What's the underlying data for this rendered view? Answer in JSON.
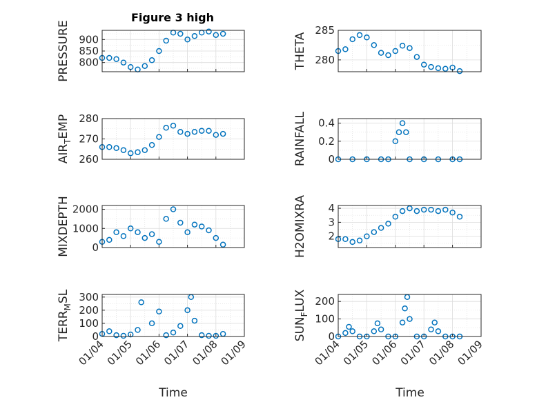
{
  "figure": {
    "title": "Figure 3 high",
    "xlabel": "Time"
  },
  "chart_data": [
    {
      "type": "scatter",
      "ylabel": "PRESSURE",
      "ylim": [
        760,
        940
      ],
      "yticks": [
        800,
        850,
        900
      ],
      "x": [
        "01/04 00:00",
        "01/04 06:00",
        "01/04 12:00",
        "01/04 18:00",
        "01/05 00:00",
        "01/05 06:00",
        "01/05 12:00",
        "01/05 18:00",
        "01/06 00:00",
        "01/06 06:00",
        "01/06 12:00",
        "01/06 18:00",
        "01/07 00:00",
        "01/07 06:00",
        "01/07 12:00",
        "01/07 18:00",
        "01/08 00:00",
        "01/08 06:00"
      ],
      "y": [
        820,
        820,
        815,
        800,
        780,
        770,
        785,
        810,
        850,
        895,
        930,
        925,
        900,
        915,
        930,
        935,
        920,
        925
      ],
      "color": "#0072bd",
      "marker": "o"
    },
    {
      "type": "scatter",
      "ylabel": "THETA",
      "ylim": [
        278,
        285
      ],
      "yticks": [
        280,
        285
      ],
      "x": [
        "01/04 00:00",
        "01/04 06:00",
        "01/04 12:00",
        "01/04 18:00",
        "01/05 00:00",
        "01/05 06:00",
        "01/05 12:00",
        "01/05 18:00",
        "01/06 00:00",
        "01/06 06:00",
        "01/06 12:00",
        "01/06 18:00",
        "01/07 00:00",
        "01/07 06:00",
        "01/07 12:00",
        "01/07 18:00",
        "01/08 00:00",
        "01/08 06:00"
      ],
      "y": [
        281.5,
        281.8,
        283.5,
        284.2,
        283.8,
        282.5,
        281.2,
        280.8,
        281.5,
        282.4,
        282.0,
        280.5,
        279.2,
        278.8,
        278.6,
        278.5,
        278.7,
        278.1
      ],
      "color": "#0072bd",
      "marker": "o"
    },
    {
      "type": "scatter",
      "ylabel": "AIR_TEMP",
      "ylim": [
        260,
        280
      ],
      "yticks": [
        260,
        270,
        280
      ],
      "x": [
        "01/04 00:00",
        "01/04 06:00",
        "01/04 12:00",
        "01/04 18:00",
        "01/05 00:00",
        "01/05 06:00",
        "01/05 12:00",
        "01/05 18:00",
        "01/06 00:00",
        "01/06 06:00",
        "01/06 12:00",
        "01/06 18:00",
        "01/07 00:00",
        "01/07 06:00",
        "01/07 12:00",
        "01/07 18:00",
        "01/08 00:00",
        "01/08 06:00"
      ],
      "y": [
        266,
        266,
        265.5,
        264.5,
        263,
        263.5,
        264.5,
        267,
        271,
        275.5,
        276.5,
        273.5,
        272.5,
        273.5,
        274,
        274,
        272,
        272.5
      ],
      "color": "#0072bd",
      "marker": "o"
    },
    {
      "type": "scatter",
      "ylabel": "RAINFALL",
      "ylim": [
        0,
        0.45
      ],
      "yticks": [
        0,
        0.2,
        0.4
      ],
      "x": [
        "01/04 00:00",
        "01/04 12:00",
        "01/05 00:00",
        "01/05 12:00",
        "01/05 18:00",
        "01/06 00:00",
        "01/06 03:00",
        "01/06 06:00",
        "01/06 09:00",
        "01/06 12:00",
        "01/07 00:00",
        "01/07 12:00",
        "01/08 00:00",
        "01/08 06:00"
      ],
      "y": [
        0,
        0,
        0,
        0,
        0,
        0.2,
        0.3,
        0.4,
        0.3,
        0,
        0,
        0,
        0,
        0
      ],
      "color": "#0072bd",
      "marker": "o"
    },
    {
      "type": "scatter",
      "ylabel": "MIXDEPTH",
      "ylim": [
        0,
        2200
      ],
      "yticks": [
        0,
        1000,
        2000
      ],
      "x": [
        "01/04 00:00",
        "01/04 06:00",
        "01/04 12:00",
        "01/04 18:00",
        "01/05 00:00",
        "01/05 06:00",
        "01/05 12:00",
        "01/05 18:00",
        "01/06 00:00",
        "01/06 06:00",
        "01/06 12:00",
        "01/06 18:00",
        "01/07 00:00",
        "01/07 06:00",
        "01/07 12:00",
        "01/07 18:00",
        "01/08 00:00",
        "01/08 06:00"
      ],
      "y": [
        300,
        400,
        800,
        600,
        1000,
        800,
        500,
        700,
        300,
        1500,
        2000,
        1300,
        800,
        1200,
        1100,
        900,
        500,
        150
      ],
      "color": "#0072bd",
      "marker": "o"
    },
    {
      "type": "scatter",
      "ylabel": "H2OMIXRA",
      "ylim": [
        1.2,
        4.2
      ],
      "yticks": [
        2,
        3,
        4
      ],
      "x": [
        "01/04 00:00",
        "01/04 06:00",
        "01/04 12:00",
        "01/04 18:00",
        "01/05 00:00",
        "01/05 06:00",
        "01/05 12:00",
        "01/05 18:00",
        "01/06 00:00",
        "01/06 06:00",
        "01/06 12:00",
        "01/06 18:00",
        "01/07 00:00",
        "01/07 06:00",
        "01/07 12:00",
        "01/07 18:00",
        "01/08 00:00",
        "01/08 06:00"
      ],
      "y": [
        1.8,
        1.8,
        1.6,
        1.7,
        2.0,
        2.3,
        2.6,
        2.9,
        3.4,
        3.8,
        4.0,
        3.8,
        3.9,
        3.9,
        3.8,
        3.9,
        3.7,
        3.4
      ],
      "color": "#0072bd",
      "marker": "o"
    },
    {
      "type": "scatter",
      "ylabel": "TERR_MSL",
      "ylim": [
        0,
        320
      ],
      "yticks": [
        0,
        100,
        200,
        300
      ],
      "x": [
        "01/04 00:00",
        "01/04 06:00",
        "01/04 12:00",
        "01/04 18:00",
        "01/05 00:00",
        "01/05 06:00",
        "01/05 09:00",
        "01/05 18:00",
        "01/06 00:00",
        "01/06 06:00",
        "01/06 12:00",
        "01/06 18:00",
        "01/07 00:00",
        "01/07 03:00",
        "01/07 06:00",
        "01/07 12:00",
        "01/07 18:00",
        "01/08 00:00",
        "01/08 06:00"
      ],
      "y": [
        20,
        40,
        10,
        5,
        15,
        50,
        260,
        100,
        190,
        10,
        30,
        80,
        200,
        300,
        120,
        10,
        5,
        5,
        20
      ],
      "color": "#0072bd",
      "marker": "o"
    },
    {
      "type": "scatter",
      "ylabel": "SUN_FLUX",
      "ylim": [
        0,
        240
      ],
      "yticks": [
        0,
        100,
        200
      ],
      "x": [
        "01/04 00:00",
        "01/04 06:00",
        "01/04 09:00",
        "01/04 12:00",
        "01/04 18:00",
        "01/05 00:00",
        "01/05 06:00",
        "01/05 09:00",
        "01/05 12:00",
        "01/05 18:00",
        "01/06 00:00",
        "01/06 06:00",
        "01/06 08:00",
        "01/06 10:00",
        "01/06 12:00",
        "01/06 18:00",
        "01/07 00:00",
        "01/07 06:00",
        "01/07 09:00",
        "01/07 12:00",
        "01/07 18:00",
        "01/08 00:00",
        "01/08 06:00"
      ],
      "y": [
        0,
        20,
        55,
        30,
        0,
        0,
        30,
        75,
        40,
        0,
        0,
        80,
        160,
        225,
        100,
        0,
        0,
        40,
        80,
        30,
        0,
        0,
        0
      ],
      "color": "#0072bd",
      "marker": "o"
    }
  ],
  "x_axis": {
    "ticks": [
      "01/04",
      "01/05",
      "01/06",
      "01/07",
      "01/08",
      "01/09"
    ],
    "range": [
      "01/04 00:00",
      "01/09 00:00"
    ]
  }
}
